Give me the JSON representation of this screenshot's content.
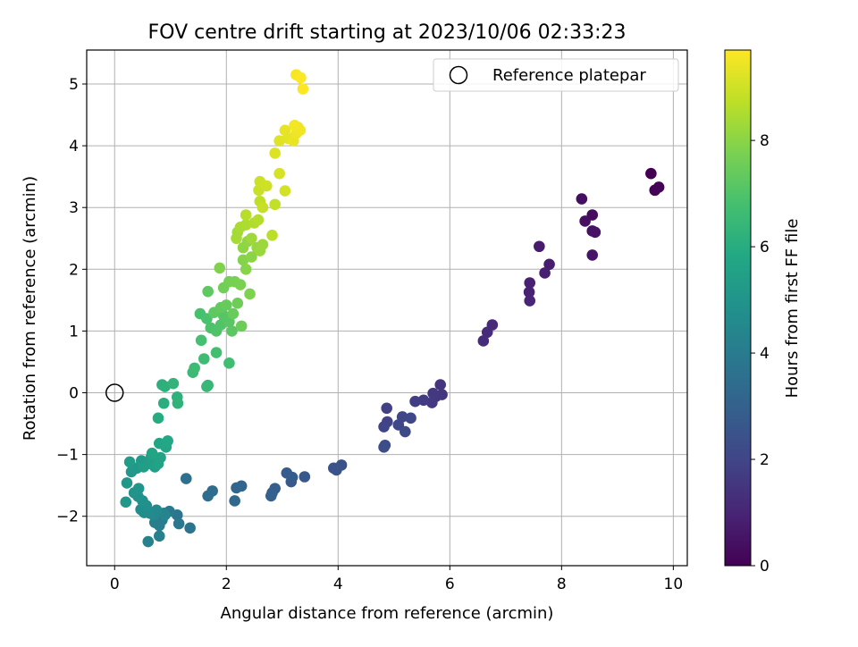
{
  "chart_data": {
    "type": "scatter",
    "title": "FOV centre drift starting at 2023/10/06 02:33:23",
    "xlabel": "Angular distance from reference (arcmin)",
    "ylabel": "Rotation from reference (arcmin)",
    "xlim": [
      -0.5,
      10.25
    ],
    "ylim": [
      -2.8,
      5.55
    ],
    "xticks": [
      0,
      2,
      4,
      6,
      8,
      10
    ],
    "yticks": [
      -2,
      -1,
      0,
      1,
      2,
      3,
      4,
      5
    ],
    "grid": true,
    "legend": {
      "position": "top-right",
      "entries": [
        "Reference platepar"
      ]
    },
    "reference": {
      "x": 0,
      "y": 0,
      "marker": "open-circle"
    },
    "colorbar": {
      "label": "Hours from first FF file",
      "colormap": "viridis",
      "range": [
        0,
        9.7
      ],
      "ticks": [
        0,
        2,
        4,
        6,
        8
      ]
    },
    "points": [
      {
        "x": 9.6,
        "y": 3.55,
        "c": 0.0
      },
      {
        "x": 9.67,
        "y": 3.28,
        "c": 0.05
      },
      {
        "x": 9.74,
        "y": 3.33,
        "c": 0.1
      },
      {
        "x": 8.55,
        "y": 2.88,
        "c": 0.3
      },
      {
        "x": 8.36,
        "y": 3.14,
        "c": 0.35
      },
      {
        "x": 8.42,
        "y": 2.78,
        "c": 0.4
      },
      {
        "x": 8.55,
        "y": 2.62,
        "c": 0.45
      },
      {
        "x": 8.6,
        "y": 2.6,
        "c": 0.5
      },
      {
        "x": 8.55,
        "y": 2.23,
        "c": 0.55
      },
      {
        "x": 7.6,
        "y": 2.37,
        "c": 0.75
      },
      {
        "x": 7.78,
        "y": 2.08,
        "c": 0.8
      },
      {
        "x": 7.7,
        "y": 1.94,
        "c": 0.85
      },
      {
        "x": 7.43,
        "y": 1.78,
        "c": 0.9
      },
      {
        "x": 7.42,
        "y": 1.63,
        "c": 0.95
      },
      {
        "x": 7.43,
        "y": 1.49,
        "c": 1.0
      },
      {
        "x": 6.76,
        "y": 1.1,
        "c": 1.15
      },
      {
        "x": 6.67,
        "y": 0.98,
        "c": 1.2
      },
      {
        "x": 6.6,
        "y": 0.84,
        "c": 1.25
      },
      {
        "x": 5.83,
        "y": 0.13,
        "c": 1.45
      },
      {
        "x": 5.86,
        "y": -0.03,
        "c": 1.5
      },
      {
        "x": 5.75,
        "y": -0.06,
        "c": 1.55
      },
      {
        "x": 5.7,
        "y": -0.01,
        "c": 1.6
      },
      {
        "x": 5.68,
        "y": -0.16,
        "c": 1.65
      },
      {
        "x": 5.53,
        "y": -0.12,
        "c": 1.7
      },
      {
        "x": 5.38,
        "y": -0.14,
        "c": 1.75
      },
      {
        "x": 4.87,
        "y": -0.25,
        "c": 1.85
      },
      {
        "x": 4.88,
        "y": -0.47,
        "c": 1.9
      },
      {
        "x": 4.82,
        "y": -0.55,
        "c": 1.95
      },
      {
        "x": 5.15,
        "y": -0.39,
        "c": 2.0
      },
      {
        "x": 5.08,
        "y": -0.52,
        "c": 2.05
      },
      {
        "x": 5.3,
        "y": -0.41,
        "c": 2.1
      },
      {
        "x": 5.2,
        "y": -0.63,
        "c": 2.15
      },
      {
        "x": 4.84,
        "y": -0.85,
        "c": 2.2
      },
      {
        "x": 4.82,
        "y": -0.88,
        "c": 2.25
      },
      {
        "x": 4.06,
        "y": -1.17,
        "c": 2.4
      },
      {
        "x": 3.92,
        "y": -1.22,
        "c": 2.45
      },
      {
        "x": 3.97,
        "y": -1.25,
        "c": 2.5
      },
      {
        "x": 3.4,
        "y": -1.36,
        "c": 2.65
      },
      {
        "x": 3.16,
        "y": -1.44,
        "c": 2.7
      },
      {
        "x": 3.08,
        "y": -1.3,
        "c": 2.75
      },
      {
        "x": 3.18,
        "y": -1.37,
        "c": 2.8
      },
      {
        "x": 2.87,
        "y": -1.55,
        "c": 2.9
      },
      {
        "x": 2.82,
        "y": -1.62,
        "c": 2.95
      },
      {
        "x": 2.8,
        "y": -1.67,
        "c": 3.0
      },
      {
        "x": 2.27,
        "y": -1.51,
        "c": 3.15
      },
      {
        "x": 2.18,
        "y": -1.54,
        "c": 3.2
      },
      {
        "x": 2.15,
        "y": -1.75,
        "c": 3.25
      },
      {
        "x": 1.75,
        "y": -1.59,
        "c": 3.4
      },
      {
        "x": 1.67,
        "y": -1.67,
        "c": 3.45
      },
      {
        "x": 1.28,
        "y": -1.39,
        "c": 3.6
      },
      {
        "x": 1.35,
        "y": -2.19,
        "c": 3.7
      },
      {
        "x": 1.12,
        "y": -1.98,
        "c": 3.8
      },
      {
        "x": 1.15,
        "y": -2.12,
        "c": 3.85
      },
      {
        "x": 0.98,
        "y": -1.92,
        "c": 3.95
      },
      {
        "x": 0.88,
        "y": -1.95,
        "c": 4.0
      },
      {
        "x": 0.85,
        "y": -2.06,
        "c": 4.05
      },
      {
        "x": 0.8,
        "y": -2.15,
        "c": 4.1
      },
      {
        "x": 0.72,
        "y": -2.1,
        "c": 4.15
      },
      {
        "x": 0.8,
        "y": -2.32,
        "c": 4.2
      },
      {
        "x": 0.6,
        "y": -2.41,
        "c": 4.3
      },
      {
        "x": 0.9,
        "y": -1.98,
        "c": 4.4
      },
      {
        "x": 0.7,
        "y": -1.98,
        "c": 4.5
      },
      {
        "x": 0.75,
        "y": -1.9,
        "c": 4.55
      },
      {
        "x": 0.63,
        "y": -1.95,
        "c": 4.6
      },
      {
        "x": 0.53,
        "y": -1.94,
        "c": 4.7
      },
      {
        "x": 0.47,
        "y": -1.89,
        "c": 4.75
      },
      {
        "x": 0.57,
        "y": -1.83,
        "c": 4.8
      },
      {
        "x": 0.5,
        "y": -1.75,
        "c": 4.85
      },
      {
        "x": 0.42,
        "y": -1.68,
        "c": 4.9
      },
      {
        "x": 0.35,
        "y": -1.62,
        "c": 4.95
      },
      {
        "x": 0.43,
        "y": -1.55,
        "c": 5.0
      },
      {
        "x": 0.2,
        "y": -1.77,
        "c": 5.05
      },
      {
        "x": 0.22,
        "y": -1.46,
        "c": 5.1
      },
      {
        "x": 0.3,
        "y": -1.28,
        "c": 5.15
      },
      {
        "x": 0.4,
        "y": -1.22,
        "c": 5.2
      },
      {
        "x": 0.48,
        "y": -1.1,
        "c": 5.25
      },
      {
        "x": 0.27,
        "y": -1.12,
        "c": 5.3
      },
      {
        "x": 0.52,
        "y": -1.2,
        "c": 5.35
      },
      {
        "x": 0.6,
        "y": -1.15,
        "c": 5.4
      },
      {
        "x": 0.65,
        "y": -1.05,
        "c": 5.45
      },
      {
        "x": 0.72,
        "y": -1.2,
        "c": 5.5
      },
      {
        "x": 0.78,
        "y": -1.15,
        "c": 5.55
      },
      {
        "x": 0.82,
        "y": -1.05,
        "c": 5.6
      },
      {
        "x": 0.67,
        "y": -0.98,
        "c": 5.65
      },
      {
        "x": 0.8,
        "y": -0.82,
        "c": 5.7
      },
      {
        "x": 0.92,
        "y": -0.88,
        "c": 5.75
      },
      {
        "x": 0.95,
        "y": -0.78,
        "c": 5.8
      },
      {
        "x": 0.78,
        "y": -0.41,
        "c": 5.95
      },
      {
        "x": 0.88,
        "y": -0.17,
        "c": 6.05
      },
      {
        "x": 0.85,
        "y": 0.13,
        "c": 6.1
      },
      {
        "x": 0.9,
        "y": 0.1,
        "c": 6.15
      },
      {
        "x": 1.12,
        "y": -0.07,
        "c": 6.2
      },
      {
        "x": 1.13,
        "y": -0.17,
        "c": 6.25
      },
      {
        "x": 1.05,
        "y": 0.15,
        "c": 6.3
      },
      {
        "x": 1.67,
        "y": 0.12,
        "c": 6.4
      },
      {
        "x": 1.65,
        "y": 0.1,
        "c": 6.45
      },
      {
        "x": 1.4,
        "y": 0.33,
        "c": 6.55
      },
      {
        "x": 1.43,
        "y": 0.4,
        "c": 6.6
      },
      {
        "x": 1.6,
        "y": 0.55,
        "c": 6.65
      },
      {
        "x": 2.05,
        "y": 0.48,
        "c": 6.7
      },
      {
        "x": 1.82,
        "y": 0.65,
        "c": 6.75
      },
      {
        "x": 1.55,
        "y": 0.85,
        "c": 6.8
      },
      {
        "x": 1.53,
        "y": 1.28,
        "c": 6.85
      },
      {
        "x": 1.65,
        "y": 1.2,
        "c": 6.9
      },
      {
        "x": 1.72,
        "y": 1.05,
        "c": 6.95
      },
      {
        "x": 1.82,
        "y": 1.0,
        "c": 7.0
      },
      {
        "x": 1.9,
        "y": 1.1,
        "c": 7.05
      },
      {
        "x": 1.95,
        "y": 1.25,
        "c": 7.1
      },
      {
        "x": 2.05,
        "y": 1.15,
        "c": 7.15
      },
      {
        "x": 2.1,
        "y": 1.0,
        "c": 7.2
      },
      {
        "x": 1.78,
        "y": 1.3,
        "c": 7.25
      },
      {
        "x": 1.67,
        "y": 1.64,
        "c": 7.3
      },
      {
        "x": 1.9,
        "y": 1.38,
        "c": 7.35
      },
      {
        "x": 2.0,
        "y": 1.42,
        "c": 7.4
      },
      {
        "x": 2.12,
        "y": 1.28,
        "c": 7.45
      },
      {
        "x": 2.27,
        "y": 1.08,
        "c": 7.5
      },
      {
        "x": 2.2,
        "y": 1.45,
        "c": 7.55
      },
      {
        "x": 1.95,
        "y": 1.7,
        "c": 7.6
      },
      {
        "x": 2.05,
        "y": 1.8,
        "c": 7.65
      },
      {
        "x": 2.15,
        "y": 1.8,
        "c": 7.7
      },
      {
        "x": 2.25,
        "y": 1.75,
        "c": 7.75
      },
      {
        "x": 2.42,
        "y": 1.6,
        "c": 7.8
      },
      {
        "x": 1.88,
        "y": 2.02,
        "c": 7.85
      },
      {
        "x": 2.3,
        "y": 2.15,
        "c": 7.9
      },
      {
        "x": 2.35,
        "y": 2.0,
        "c": 7.95
      },
      {
        "x": 2.45,
        "y": 2.2,
        "c": 8.0
      },
      {
        "x": 2.3,
        "y": 2.35,
        "c": 8.05
      },
      {
        "x": 2.38,
        "y": 2.45,
        "c": 8.1
      },
      {
        "x": 2.55,
        "y": 2.35,
        "c": 8.15
      },
      {
        "x": 2.6,
        "y": 2.3,
        "c": 8.2
      },
      {
        "x": 2.65,
        "y": 2.4,
        "c": 8.25
      },
      {
        "x": 2.45,
        "y": 2.5,
        "c": 8.3
      },
      {
        "x": 2.2,
        "y": 2.6,
        "c": 8.35
      },
      {
        "x": 2.18,
        "y": 2.5,
        "c": 8.4
      },
      {
        "x": 2.25,
        "y": 2.68,
        "c": 8.45
      },
      {
        "x": 2.35,
        "y": 2.72,
        "c": 8.5
      },
      {
        "x": 2.5,
        "y": 2.75,
        "c": 8.55
      },
      {
        "x": 2.57,
        "y": 2.8,
        "c": 8.6
      },
      {
        "x": 2.35,
        "y": 2.88,
        "c": 8.65
      },
      {
        "x": 2.82,
        "y": 2.55,
        "c": 8.7
      },
      {
        "x": 2.6,
        "y": 3.1,
        "c": 8.75
      },
      {
        "x": 2.87,
        "y": 3.05,
        "c": 8.8
      },
      {
        "x": 2.65,
        "y": 3.0,
        "c": 8.85
      },
      {
        "x": 2.58,
        "y": 3.28,
        "c": 8.9
      },
      {
        "x": 2.6,
        "y": 3.42,
        "c": 8.95
      },
      {
        "x": 2.72,
        "y": 3.35,
        "c": 9.0
      },
      {
        "x": 3.05,
        "y": 3.27,
        "c": 9.05
      },
      {
        "x": 2.95,
        "y": 3.55,
        "c": 9.1
      },
      {
        "x": 2.87,
        "y": 3.88,
        "c": 9.2
      },
      {
        "x": 2.95,
        "y": 4.08,
        "c": 9.25
      },
      {
        "x": 3.1,
        "y": 4.12,
        "c": 9.3
      },
      {
        "x": 3.05,
        "y": 4.25,
        "c": 9.35
      },
      {
        "x": 3.2,
        "y": 4.08,
        "c": 9.4
      },
      {
        "x": 3.25,
        "y": 4.2,
        "c": 9.45
      },
      {
        "x": 3.28,
        "y": 4.3,
        "c": 9.5
      },
      {
        "x": 3.32,
        "y": 4.25,
        "c": 9.52
      },
      {
        "x": 3.22,
        "y": 4.33,
        "c": 9.55
      },
      {
        "x": 3.25,
        "y": 5.15,
        "c": 9.6
      },
      {
        "x": 3.33,
        "y": 5.1,
        "c": 9.65
      },
      {
        "x": 3.37,
        "y": 4.92,
        "c": 9.7
      }
    ]
  }
}
